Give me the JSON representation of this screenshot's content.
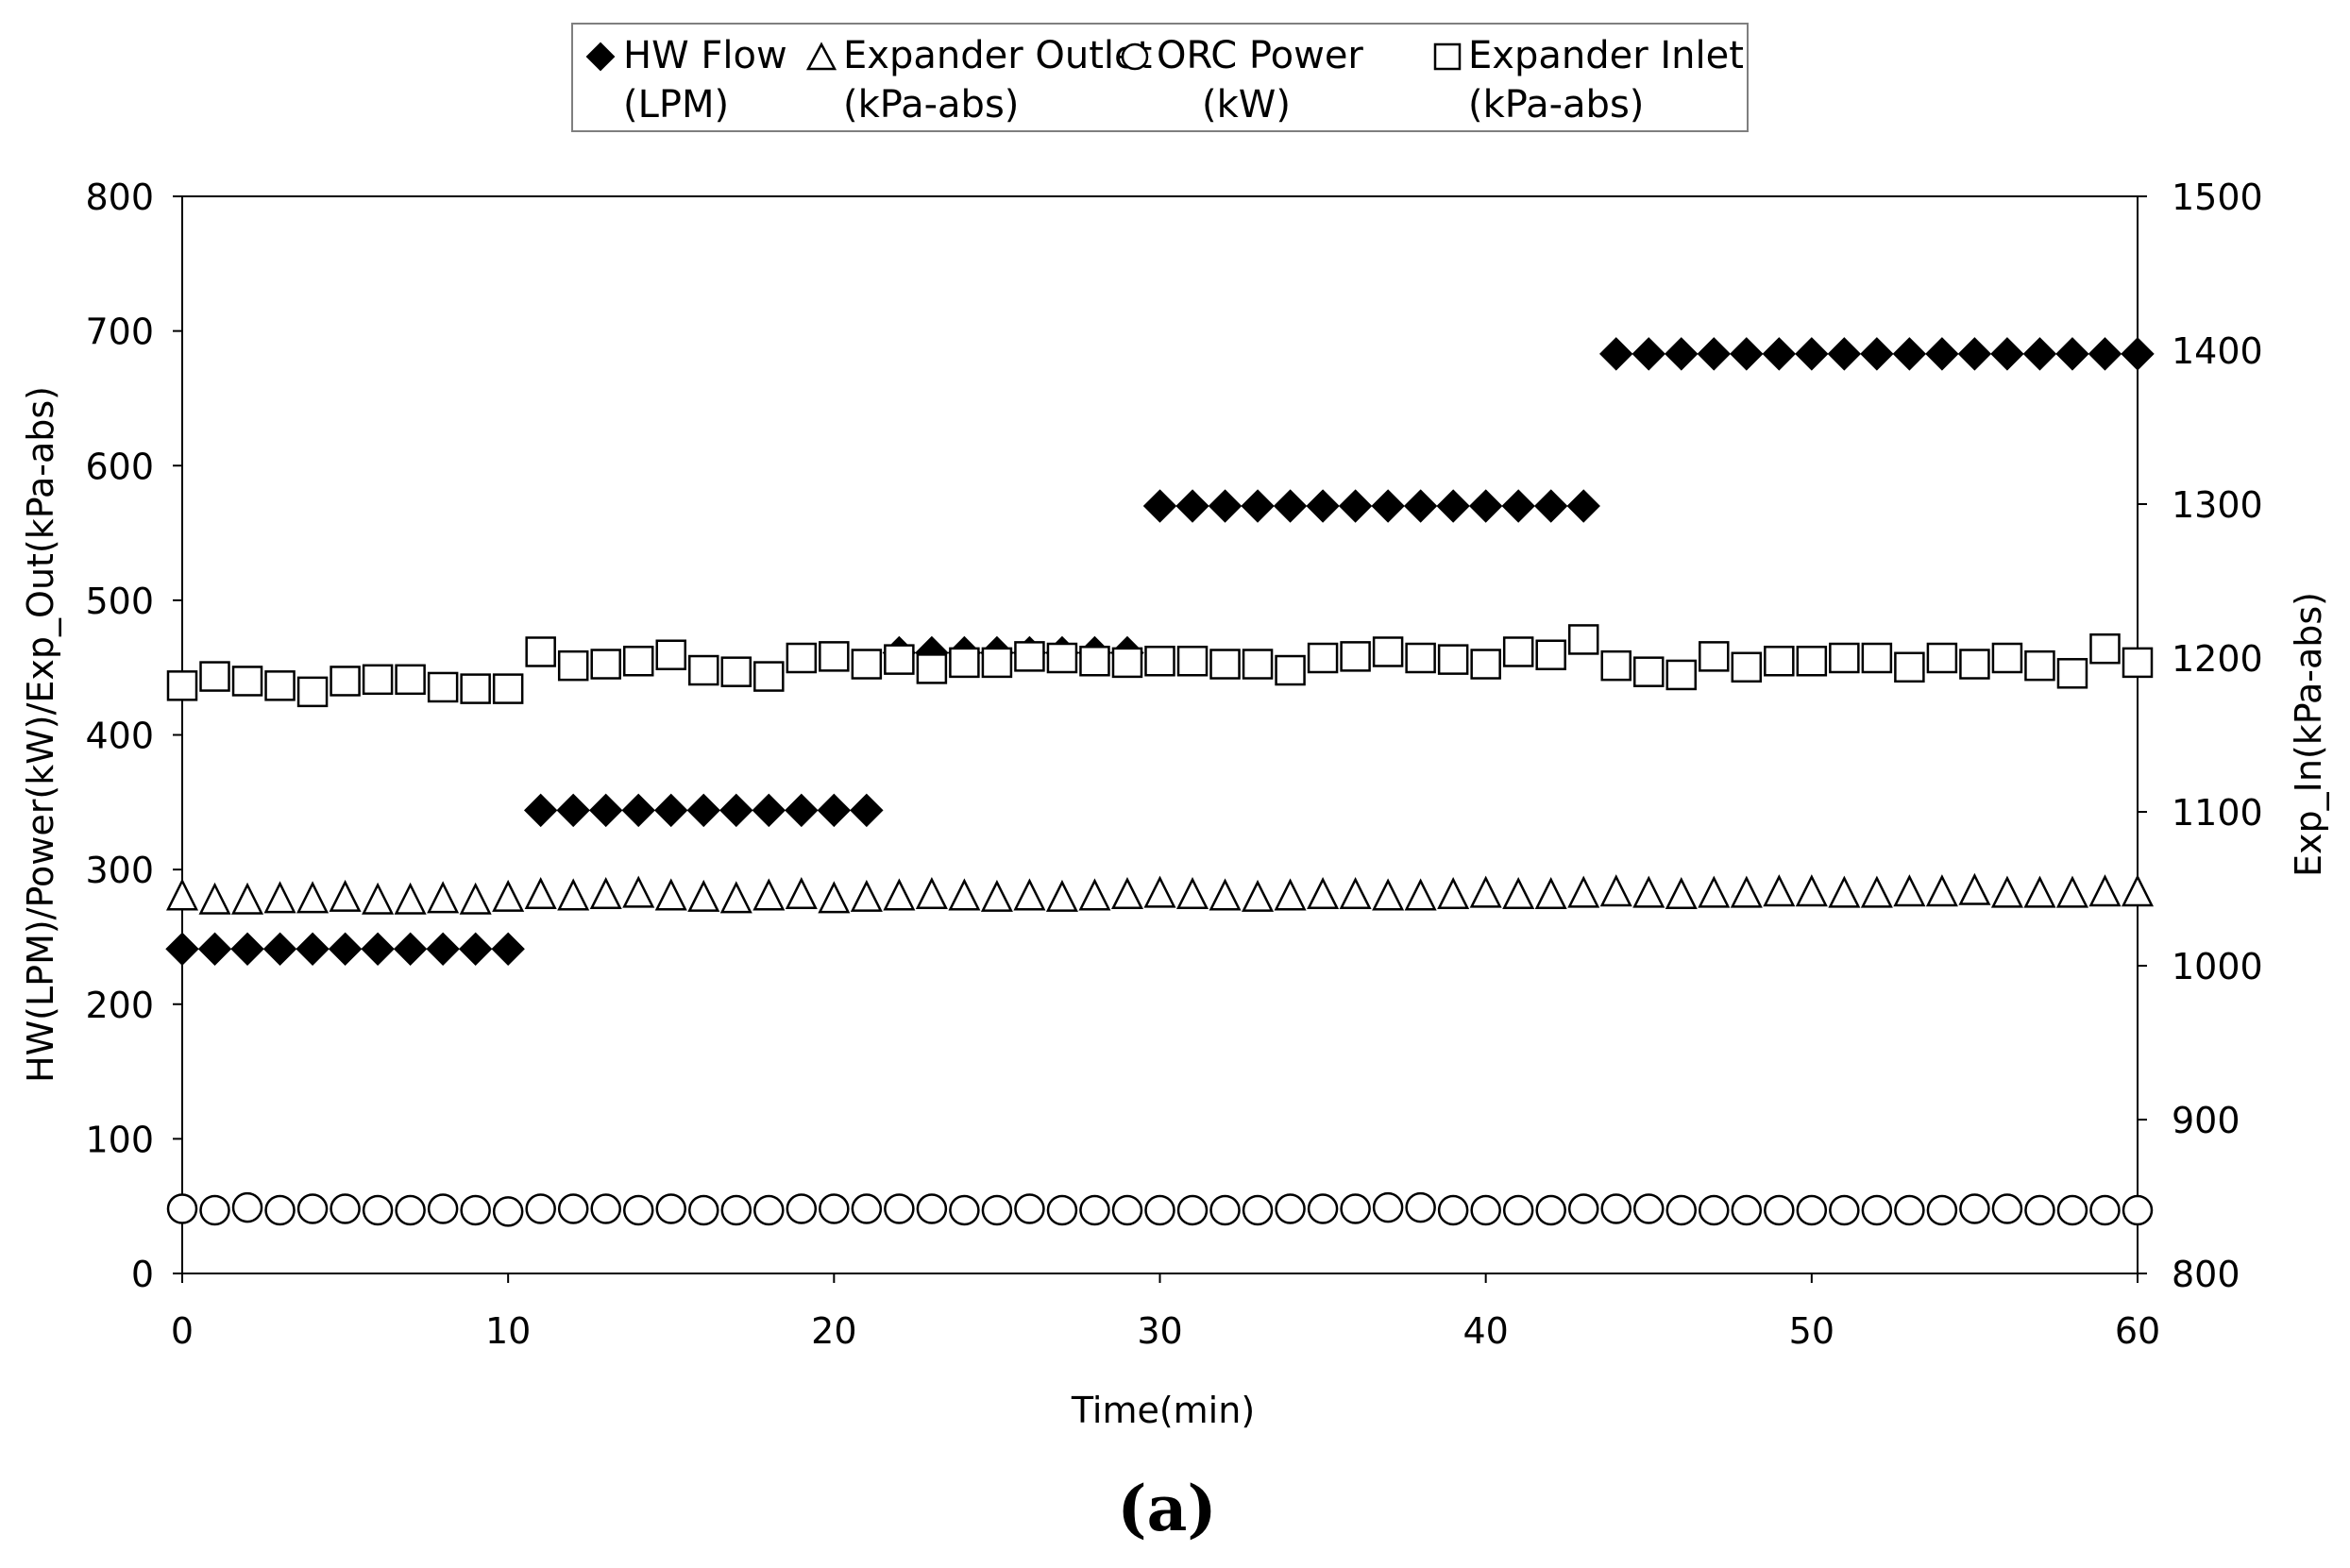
{
  "chart_data": {
    "type": "scatter",
    "panel_label": "(a)",
    "xlabel": "Time(min)",
    "ylabel_left": "HW(LPM)/Power(kW)/Exp_Out(kPa-abs)",
    "ylabel_right": "Exp_In(kPa-abs)",
    "xlim": [
      0,
      60
    ],
    "ylim_left": [
      0,
      800
    ],
    "ylim_right": [
      800,
      1500
    ],
    "x_ticks": [
      "0",
      "10",
      "20",
      "30",
      "40",
      "50",
      "60"
    ],
    "y_ticks_left": [
      "0",
      "100",
      "200",
      "300",
      "400",
      "500",
      "600",
      "700",
      "800"
    ],
    "y_ticks_right": [
      "800",
      "900",
      "1000",
      "1100",
      "1200",
      "1300",
      "1400",
      "1500"
    ],
    "grid": false,
    "legend_position": "top",
    "legend": [
      {
        "line1": "HW Flow",
        "line2": "(LPM)",
        "marker": "diamond-filled"
      },
      {
        "line1": "Expander Outlet",
        "line2": "(kPa-abs)",
        "marker": "triangle-open"
      },
      {
        "line1": "ORC Power",
        "line2": "(kW)",
        "marker": "circle-open"
      },
      {
        "line1": "Expander Inlet",
        "line2": "(kPa-abs)",
        "marker": "square-open"
      }
    ],
    "series": [
      {
        "name": "HW Flow (LPM)",
        "axis": "left",
        "marker": "diamond-filled",
        "x": [
          0,
          1,
          2,
          3,
          4,
          5,
          6,
          7,
          8,
          9,
          10,
          11,
          12,
          13,
          14,
          15,
          16,
          17,
          18,
          19,
          20,
          21,
          22,
          23,
          24,
          25,
          26,
          27,
          28,
          29,
          30,
          31,
          32,
          33,
          34,
          35,
          36,
          37,
          38,
          39,
          40,
          41,
          42,
          43,
          44,
          45,
          46,
          47,
          48,
          49,
          50,
          51,
          52,
          53,
          54,
          55,
          56,
          57,
          58,
          59,
          60
        ],
        "y": [
          241,
          241,
          241,
          241,
          241,
          241,
          241,
          241,
          241,
          241,
          241,
          344,
          344,
          344,
          344,
          344,
          344,
          344,
          344,
          344,
          344,
          344,
          461,
          461,
          461,
          461,
          461,
          461,
          461,
          461,
          570,
          570,
          570,
          570,
          570,
          570,
          570,
          570,
          570,
          570,
          570,
          570,
          570,
          570,
          683,
          683,
          683,
          683,
          683,
          683,
          683,
          683,
          683,
          683,
          683,
          683,
          683,
          683,
          683,
          683,
          683
        ]
      },
      {
        "name": "Expander Outlet (kPa-abs)",
        "axis": "left",
        "marker": "triangle-open",
        "x": [
          0,
          1,
          2,
          3,
          4,
          5,
          6,
          7,
          8,
          9,
          10,
          11,
          12,
          13,
          14,
          15,
          16,
          17,
          18,
          19,
          20,
          21,
          22,
          23,
          24,
          25,
          26,
          27,
          28,
          29,
          30,
          31,
          32,
          33,
          34,
          35,
          36,
          37,
          38,
          39,
          40,
          41,
          42,
          43,
          44,
          45,
          46,
          47,
          48,
          49,
          50,
          51,
          52,
          53,
          54,
          55,
          56,
          57,
          58,
          59,
          60
        ],
        "y": [
          281,
          278,
          278,
          279,
          279,
          280,
          278,
          278,
          279,
          278,
          280,
          282,
          281,
          282,
          283,
          281,
          280,
          279,
          281,
          282,
          279,
          280,
          281,
          282,
          281,
          280,
          281,
          280,
          281,
          282,
          283,
          282,
          281,
          280,
          281,
          282,
          282,
          281,
          281,
          282,
          283,
          282,
          282,
          283,
          284,
          283,
          282,
          283,
          283,
          284,
          284,
          283,
          283,
          284,
          284,
          285,
          283,
          283,
          283,
          284,
          284
        ]
      },
      {
        "name": "ORC Power (kW)",
        "axis": "left",
        "marker": "circle-open",
        "x": [
          0,
          1,
          2,
          3,
          4,
          5,
          6,
          7,
          8,
          9,
          10,
          11,
          12,
          13,
          14,
          15,
          16,
          17,
          18,
          19,
          20,
          21,
          22,
          23,
          24,
          25,
          26,
          27,
          28,
          29,
          30,
          31,
          32,
          33,
          34,
          35,
          36,
          37,
          38,
          39,
          40,
          41,
          42,
          43,
          44,
          45,
          46,
          47,
          48,
          49,
          50,
          51,
          52,
          53,
          54,
          55,
          56,
          57,
          58,
          59,
          60
        ],
        "y": [
          48,
          47,
          49,
          47,
          48,
          48,
          47,
          47,
          48,
          47,
          46,
          48,
          48,
          48,
          47,
          48,
          47,
          47,
          47,
          48,
          48,
          48,
          48,
          48,
          47,
          47,
          48,
          47,
          47,
          47,
          47,
          47,
          47,
          47,
          48,
          48,
          48,
          49,
          49,
          47,
          47,
          47,
          47,
          48,
          48,
          48,
          47,
          47,
          47,
          47,
          47,
          47,
          47,
          47,
          47,
          48,
          48,
          47,
          47,
          47,
          47
        ]
      },
      {
        "name": "Expander Inlet (kPa-abs)",
        "axis": "right",
        "marker": "square-open",
        "x": [
          0,
          1,
          2,
          3,
          4,
          5,
          6,
          7,
          8,
          9,
          10,
          11,
          12,
          13,
          14,
          15,
          16,
          17,
          18,
          19,
          20,
          21,
          22,
          23,
          24,
          25,
          26,
          27,
          28,
          29,
          30,
          31,
          32,
          33,
          34,
          35,
          36,
          37,
          38,
          39,
          40,
          41,
          42,
          43,
          44,
          45,
          46,
          47,
          48,
          49,
          50,
          51,
          52,
          53,
          54,
          55,
          56,
          57,
          58,
          59,
          60
        ],
        "y": [
          1182,
          1188,
          1185,
          1182,
          1178,
          1185,
          1186,
          1186,
          1181,
          1180,
          1180,
          1204,
          1195,
          1196,
          1198,
          1202,
          1192,
          1191,
          1188,
          1200,
          1201,
          1196,
          1199,
          1193,
          1197,
          1197,
          1201,
          1200,
          1198,
          1197,
          1198,
          1198,
          1196,
          1196,
          1192,
          1200,
          1201,
          1204,
          1200,
          1199,
          1196,
          1204,
          1202,
          1212,
          1195,
          1191,
          1189,
          1201,
          1194,
          1198,
          1198,
          1200,
          1200,
          1194,
          1200,
          1196,
          1200,
          1195,
          1190,
          1206,
          1197
        ]
      }
    ]
  }
}
